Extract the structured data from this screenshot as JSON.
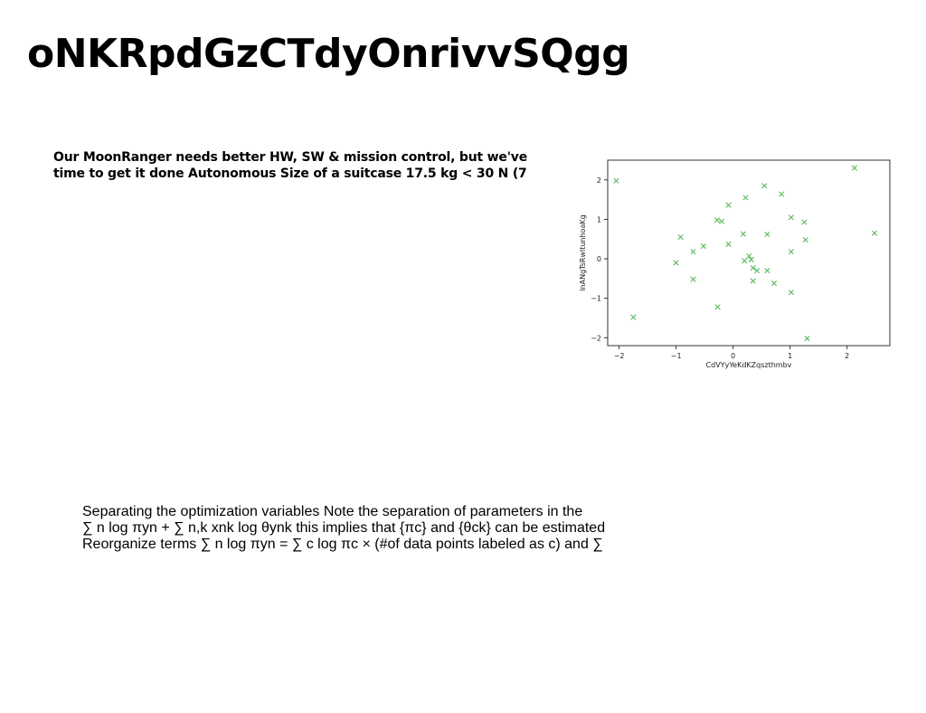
{
  "document": {
    "title": "oNKRpdGzCTdyOnrivvSQgg",
    "bold_paragraph": "Our MoonRanger needs better HW, SW & mission control, but we've time to get it done Autonomous Size of a suitcase 17.5 kg < 30 N (7",
    "plain_paragraph": [
      "Separating the optimization variables Note the separation of parameters in the",
      "∑ n log πyn + ∑ n,k xnk log θynk this implies that {πc} and {θck} can be estimated",
      "Reorganize terms ∑ n log πyn = ∑ c log πc × (#of data points labeled as c) and ∑"
    ]
  },
  "chart_data": {
    "type": "scatter",
    "marker": "x",
    "color": "#5cb85c",
    "xlabel": "CdVYyYeKdKZqszthmbv",
    "ylabel": "lnANgTsRwltunhoaKg",
    "xlim": [
      -2.2,
      2.75
    ],
    "ylim": [
      -2.2,
      2.5
    ],
    "xticks": [
      -2,
      -1,
      0,
      1,
      2
    ],
    "yticks": [
      -2,
      -1,
      0,
      1,
      2
    ],
    "xtick_labels": [
      "−2",
      "−1",
      "0",
      "1",
      "2"
    ],
    "ytick_labels": [
      "−2",
      "−1",
      "0",
      "1",
      "2"
    ],
    "grid": false,
    "points": [
      {
        "x": -2.05,
        "y": 1.98
      },
      {
        "x": -1.75,
        "y": -1.48
      },
      {
        "x": -1.0,
        "y": -0.1
      },
      {
        "x": -0.92,
        "y": 0.55
      },
      {
        "x": -0.7,
        "y": 0.18
      },
      {
        "x": -0.7,
        "y": -0.52
      },
      {
        "x": -0.52,
        "y": 0.32
      },
      {
        "x": -0.28,
        "y": 0.98
      },
      {
        "x": -0.2,
        "y": 0.95
      },
      {
        "x": -0.27,
        "y": -1.22
      },
      {
        "x": -0.08,
        "y": 1.36
      },
      {
        "x": -0.08,
        "y": 0.37
      },
      {
        "x": 0.18,
        "y": 0.63
      },
      {
        "x": 0.22,
        "y": 1.55
      },
      {
        "x": 0.2,
        "y": -0.05
      },
      {
        "x": 0.28,
        "y": 0.07
      },
      {
        "x": 0.32,
        "y": -0.02
      },
      {
        "x": 0.35,
        "y": -0.23
      },
      {
        "x": 0.42,
        "y": -0.3
      },
      {
        "x": 0.35,
        "y": -0.56
      },
      {
        "x": 0.55,
        "y": 1.85
      },
      {
        "x": 0.6,
        "y": 0.62
      },
      {
        "x": 0.6,
        "y": -0.3
      },
      {
        "x": 0.72,
        "y": -0.62
      },
      {
        "x": 0.85,
        "y": 1.64
      },
      {
        "x": 1.02,
        "y": 1.05
      },
      {
        "x": 1.02,
        "y": 0.18
      },
      {
        "x": 1.02,
        "y": -0.85
      },
      {
        "x": 1.25,
        "y": 0.93
      },
      {
        "x": 1.27,
        "y": 0.48
      },
      {
        "x": 1.3,
        "y": -2.02
      },
      {
        "x": 2.13,
        "y": 2.3
      },
      {
        "x": 2.48,
        "y": 0.65
      }
    ]
  }
}
